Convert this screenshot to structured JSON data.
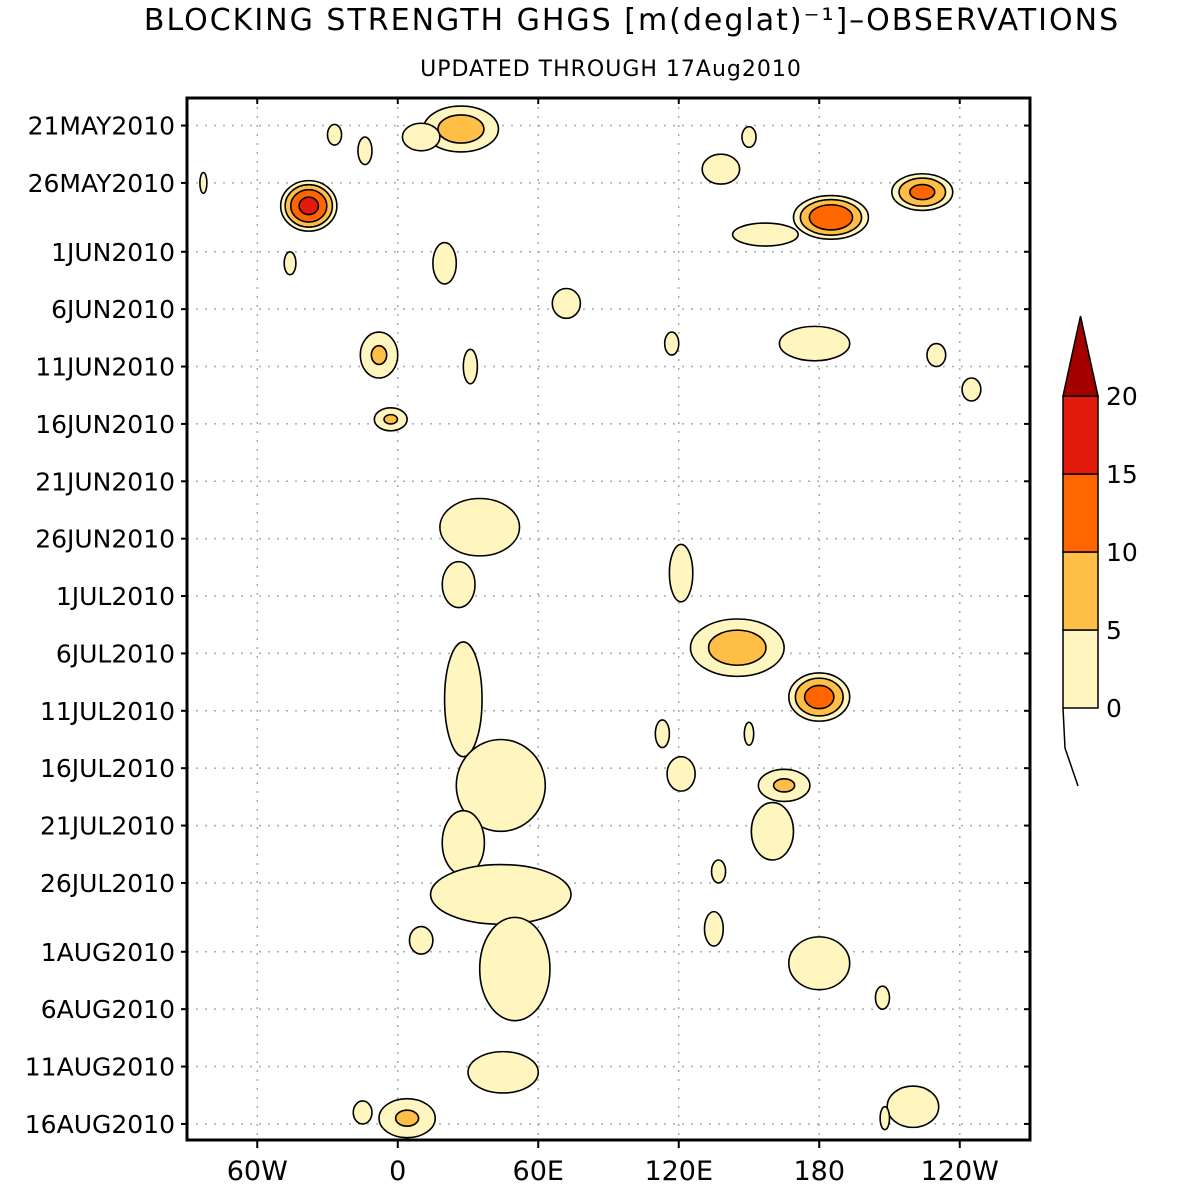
{
  "chart_data": {
    "type": "heatmap",
    "title": "BLOCKING STRENGTH GHGS [m(deglat)⁻¹]–OBSERVATIONS",
    "subtitle": "UPDATED THROUGH 17Aug2010",
    "xlabel": "",
    "ylabel": "",
    "x_ticks": [
      "60W",
      "0",
      "60E",
      "120E",
      "180",
      "120W"
    ],
    "x_tick_lon": [
      -60,
      0,
      60,
      120,
      180,
      240
    ],
    "xlim": [
      -90,
      270
    ],
    "y_ticks": [
      "21MAY2010",
      "26MAY2010",
      "1JUN2010",
      "6JUN2010",
      "11JUN2010",
      "16JUN2010",
      "21JUN2010",
      "26JUN2010",
      "1JUL2010",
      "6JUL2010",
      "11JUL2010",
      "16JUL2010",
      "21JUL2010",
      "26JUL2010",
      "1AUG2010",
      "6AUG2010",
      "11AUG2010",
      "16AUG2010"
    ],
    "y_tick_day": [
      0,
      5,
      11,
      16,
      21,
      26,
      31,
      36,
      41,
      46,
      51,
      56,
      61,
      66,
      72,
      77,
      82,
      87
    ],
    "ylim": [
      -2.4,
      88.4
    ],
    "grid": true,
    "colorbar": {
      "levels": [
        0,
        5,
        10,
        15,
        20
      ],
      "labels": [
        "0",
        "5",
        "10",
        "15",
        "20"
      ],
      "colors": [
        "#fff5bf",
        "#ffbe46",
        "#ff6600",
        "#e31a0c",
        "#a50000"
      ],
      "extend": "max",
      "placement": "right"
    },
    "regions": [
      {
        "lon": 27,
        "day": 0.3,
        "rx": 16,
        "ry": 2.0,
        "peak": 8
      },
      {
        "lon": -38,
        "day": 7.0,
        "rx": 12,
        "ry": 2.2,
        "peak": 17
      },
      {
        "lon": 185,
        "day": 8.0,
        "rx": 16,
        "ry": 1.9,
        "peak": 15
      },
      {
        "lon": 224,
        "day": 5.8,
        "rx": 13,
        "ry": 1.6,
        "peak": 12
      },
      {
        "lon": 10,
        "day": 1.0,
        "rx": 8,
        "ry": 1.2,
        "peak": 3
      },
      {
        "lon": -27,
        "day": 0.8,
        "rx": 3,
        "ry": 0.9,
        "peak": 2
      },
      {
        "lon": -14,
        "day": 2.2,
        "rx": 3,
        "ry": 1.2,
        "peak": 2
      },
      {
        "lon": 138,
        "day": 3.8,
        "rx": 8,
        "ry": 1.3,
        "peak": 5
      },
      {
        "lon": 150,
        "day": 1.0,
        "rx": 3,
        "ry": 0.9,
        "peak": 2
      },
      {
        "lon": 157,
        "day": 9.5,
        "rx": 14,
        "ry": 1.0,
        "peak": 3
      },
      {
        "lon": -83,
        "day": 5.0,
        "rx": 1.5,
        "ry": 0.9,
        "peak": 2
      },
      {
        "lon": -46,
        "day": 12.0,
        "rx": 2.5,
        "ry": 1.0,
        "peak": 2
      },
      {
        "lon": 20,
        "day": 12.0,
        "rx": 5,
        "ry": 1.8,
        "peak": 3
      },
      {
        "lon": 72,
        "day": 15.5,
        "rx": 6,
        "ry": 1.3,
        "peak": 3
      },
      {
        "lon": -8,
        "day": 20.0,
        "rx": 8,
        "ry": 2.0,
        "peak": 6
      },
      {
        "lon": 31,
        "day": 21.0,
        "rx": 3,
        "ry": 1.5,
        "peak": 2
      },
      {
        "lon": 117,
        "day": 19.0,
        "rx": 3,
        "ry": 1.0,
        "peak": 2
      },
      {
        "lon": 178,
        "day": 19.0,
        "rx": 15,
        "ry": 1.5,
        "peak": 3
      },
      {
        "lon": 230,
        "day": 20.0,
        "rx": 4,
        "ry": 1.0,
        "peak": 2
      },
      {
        "lon": 245,
        "day": 23.0,
        "rx": 4,
        "ry": 1.0,
        "peak": 2
      },
      {
        "lon": -3,
        "day": 25.6,
        "rx": 7,
        "ry": 1.0,
        "peak": 6
      },
      {
        "lon": 35,
        "day": 35.0,
        "rx": 17,
        "ry": 2.5,
        "peak": 3
      },
      {
        "lon": 26,
        "day": 40.0,
        "rx": 7,
        "ry": 2.0,
        "peak": 3
      },
      {
        "lon": 121,
        "day": 39.0,
        "rx": 5,
        "ry": 2.5,
        "peak": 2
      },
      {
        "lon": 145,
        "day": 45.5,
        "rx": 20,
        "ry": 2.5,
        "peak": 8
      },
      {
        "lon": 180,
        "day": 49.8,
        "rx": 13,
        "ry": 2.1,
        "peak": 13
      },
      {
        "lon": 28,
        "day": 50.0,
        "rx": 8,
        "ry": 5.0,
        "peak": 3
      },
      {
        "lon": 44,
        "day": 57.5,
        "rx": 19,
        "ry": 4.0,
        "peak": 3
      },
      {
        "lon": 28,
        "day": 62.5,
        "rx": 9,
        "ry": 2.8,
        "peak": 3
      },
      {
        "lon": 113,
        "day": 53.0,
        "rx": 3,
        "ry": 1.2,
        "peak": 2
      },
      {
        "lon": 150,
        "day": 53.0,
        "rx": 2,
        "ry": 1.0,
        "peak": 2
      },
      {
        "lon": 121,
        "day": 56.5,
        "rx": 6,
        "ry": 1.5,
        "peak": 2
      },
      {
        "lon": 165,
        "day": 57.5,
        "rx": 11,
        "ry": 1.4,
        "peak": 6
      },
      {
        "lon": 160,
        "day": 61.5,
        "rx": 9,
        "ry": 2.5,
        "peak": 3
      },
      {
        "lon": 137,
        "day": 65.0,
        "rx": 3,
        "ry": 1.0,
        "peak": 2
      },
      {
        "lon": 44,
        "day": 67.0,
        "rx": 30,
        "ry": 2.6,
        "peak": 3
      },
      {
        "lon": 50,
        "day": 73.5,
        "rx": 15,
        "ry": 4.5,
        "peak": 3
      },
      {
        "lon": 10,
        "day": 71.0,
        "rx": 5,
        "ry": 1.2,
        "peak": 2
      },
      {
        "lon": 135,
        "day": 70.0,
        "rx": 4,
        "ry": 1.5,
        "peak": 2
      },
      {
        "lon": 180,
        "day": 73.0,
        "rx": 13,
        "ry": 2.3,
        "peak": 3
      },
      {
        "lon": 207,
        "day": 76.0,
        "rx": 3,
        "ry": 1.0,
        "peak": 2
      },
      {
        "lon": 45,
        "day": 82.5,
        "rx": 15,
        "ry": 1.8,
        "peak": 3
      },
      {
        "lon": -15,
        "day": 86.0,
        "rx": 4,
        "ry": 1.0,
        "peak": 2
      },
      {
        "lon": 4,
        "day": 86.5,
        "rx": 12,
        "ry": 1.7,
        "peak": 6
      },
      {
        "lon": 220,
        "day": 85.5,
        "rx": 11,
        "ry": 1.8,
        "peak": 3
      },
      {
        "lon": 208,
        "day": 86.5,
        "rx": 2,
        "ry": 1.0,
        "peak": 2
      }
    ]
  }
}
